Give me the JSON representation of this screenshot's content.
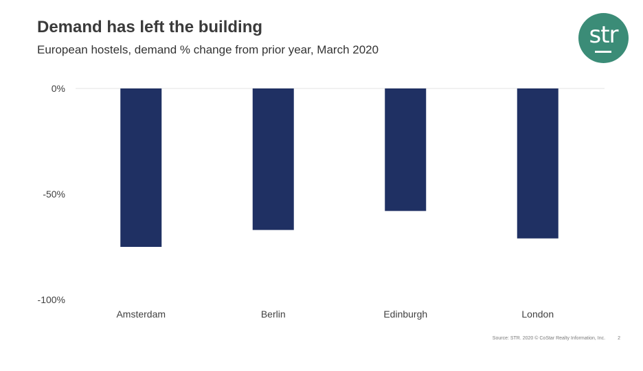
{
  "header": {
    "title": "Demand has left the building",
    "subtitle": "European hostels, demand % change from prior year, March 2020"
  },
  "logo": {
    "text": "str",
    "color": "#3b8c77"
  },
  "footer": {
    "source": "Source: STR. 2020 © CoStar Realty Information, Inc.",
    "page_number": "2"
  },
  "chart_data": {
    "type": "bar",
    "categories": [
      "Amsterdam",
      "Berlin",
      "Edinburgh",
      "London"
    ],
    "values": [
      -75,
      -67,
      -58,
      -71
    ],
    "title": "",
    "xlabel": "",
    "ylabel": "",
    "ylim": [
      -100,
      0
    ],
    "yticks": [
      {
        "value": 0,
        "label": "0%"
      },
      {
        "value": -50,
        "label": "-50%"
      },
      {
        "value": -100,
        "label": "-100%"
      }
    ],
    "bar_color": "#1f3063",
    "grid": false,
    "legend": "none"
  }
}
